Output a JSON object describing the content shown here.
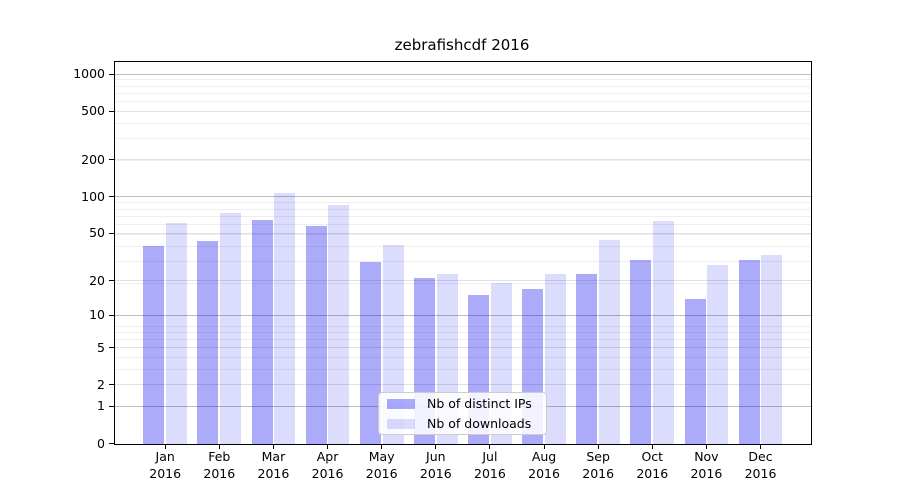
{
  "title": "zebrafishcdf 2016",
  "chart_data": {
    "type": "bar",
    "title": "zebrafishcdf 2016",
    "categories": [
      "Jan 2016",
      "Feb 2016",
      "Mar 2016",
      "Apr 2016",
      "May 2016",
      "Jun 2016",
      "Jul 2016",
      "Aug 2016",
      "Sep 2016",
      "Oct 2016",
      "Nov 2016",
      "Dec 2016"
    ],
    "x_tick_line1": [
      "Jan",
      "Feb",
      "Mar",
      "Apr",
      "May",
      "Jun",
      "Jul",
      "Aug",
      "Sep",
      "Oct",
      "Nov",
      "Dec"
    ],
    "x_tick_line2": [
      "2016",
      "2016",
      "2016",
      "2016",
      "2016",
      "2016",
      "2016",
      "2016",
      "2016",
      "2016",
      "2016",
      "2016"
    ],
    "series": [
      {
        "name": "Nb of distinct IPs",
        "color": "rgba(15,15,240,0.35)",
        "values": [
          39,
          43,
          65,
          58,
          29,
          21,
          15,
          17,
          23,
          30,
          14,
          30
        ]
      },
      {
        "name": "Nb of downloads",
        "color": "rgba(15,15,240,0.145)",
        "values": [
          61,
          74,
          108,
          85,
          40,
          23,
          19,
          23,
          44,
          63,
          27,
          33
        ]
      }
    ],
    "xlabel": "",
    "ylabel": "",
    "y_ticks": [
      0,
      1,
      2,
      5,
      10,
      20,
      50,
      100,
      200,
      500,
      1000
    ],
    "y_scale": "log10(1+y)",
    "ylim": [
      0,
      1275
    ],
    "grid": true,
    "legend_position": "lower center",
    "colors": {
      "bar_dark_on_white": "#abaff8",
      "bar_light_on_white": "#dcdcfb",
      "grid_major": "#bcbcbc",
      "grid_minor": "#efefef",
      "spine": "#000000",
      "legend_border": "#cccccc"
    }
  }
}
